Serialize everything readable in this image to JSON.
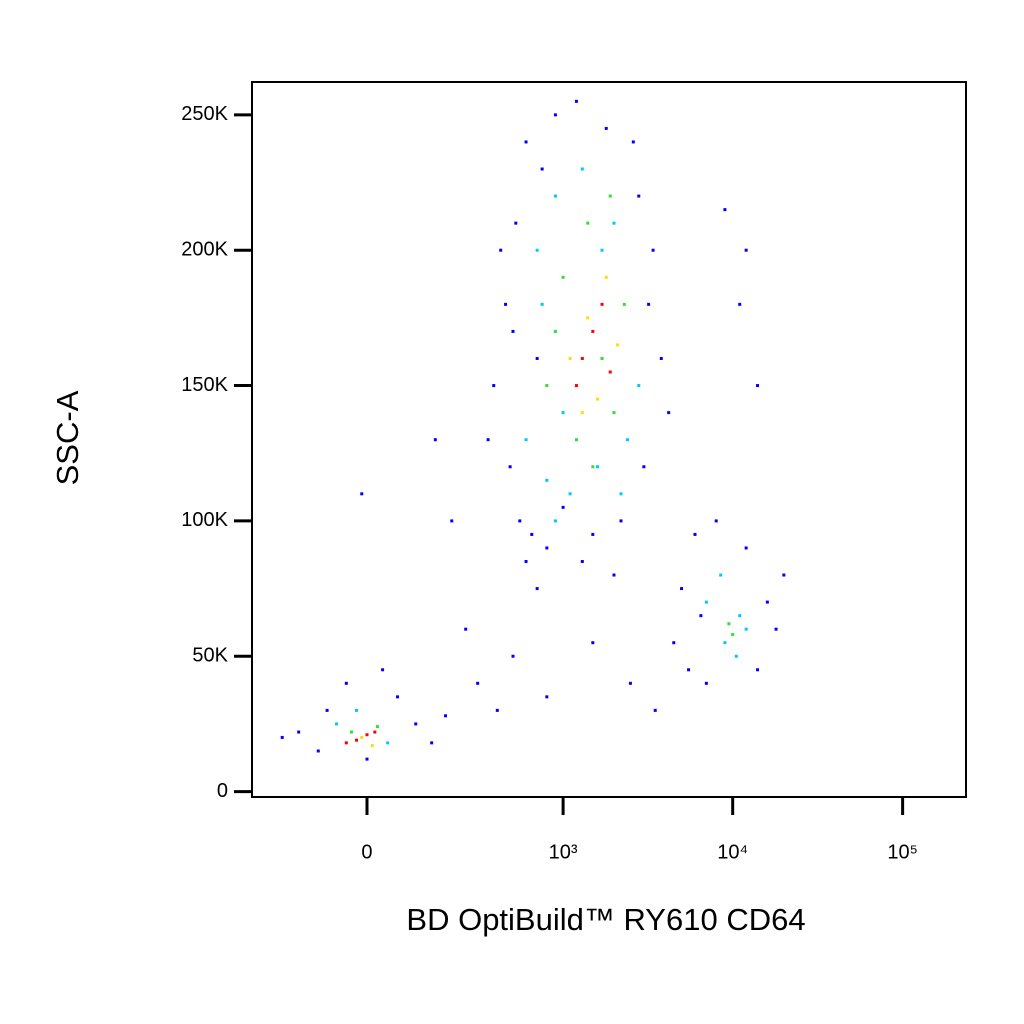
{
  "chart_data": {
    "type": "scatter",
    "x_label": "BD OptiBuild™ RY610 CD64",
    "y_label": "SSC-A",
    "xscale": "biexponential",
    "xlim": [
      -320,
      236000
    ],
    "ylim": [
      -2000,
      262144
    ],
    "xticks": [
      0,
      {
        "value": 1000,
        "label": "10³"
      },
      {
        "value": 10000,
        "label": "10⁴"
      },
      {
        "value": 100000,
        "label": "10⁵"
      }
    ],
    "yticks": [
      0,
      {
        "value": 50000,
        "label": "50K"
      },
      {
        "value": 100000,
        "label": "100K"
      },
      {
        "value": 150000,
        "label": "150K"
      },
      {
        "value": 200000,
        "label": "200K"
      },
      {
        "value": 250000,
        "label": "250K"
      }
    ],
    "series": [
      {
        "color": "#0000ff",
        "x": [
          450,
          480,
          520,
          550,
          600,
          650,
          700,
          750,
          800,
          900,
          1000,
          1200,
          1500,
          1800,
          2200,
          2600,
          3000,
          3400,
          3800,
          4200,
          380,
          420,
          350,
          500,
          2800,
          3200,
          600,
          1300,
          700,
          2000,
          -150,
          -100,
          -80,
          0,
          60,
          100,
          140,
          -40,
          30,
          180,
          -200,
          250,
          300,
          400,
          500,
          800,
          1500,
          2500,
          3500,
          200,
          150,
          -10,
          5000,
          5500,
          6000,
          7000,
          8000,
          12000,
          14000,
          16000,
          18000,
          20000,
          4500,
          6500,
          9000,
          12000,
          14000,
          11000
        ],
        "y": [
          180000,
          120000,
          210000,
          100000,
          240000,
          95000,
          160000,
          230000,
          90000,
          250000,
          105000,
          255000,
          95000,
          245000,
          100000,
          240000,
          120000,
          200000,
          160000,
          140000,
          150000,
          200000,
          130000,
          170000,
          220000,
          180000,
          85000,
          85000,
          75000,
          80000,
          22000,
          15000,
          30000,
          12000,
          35000,
          25000,
          18000,
          40000,
          45000,
          28000,
          20000,
          60000,
          40000,
          30000,
          50000,
          35000,
          55000,
          40000,
          30000,
          100000,
          130000,
          110000,
          75000,
          45000,
          95000,
          40000,
          100000,
          90000,
          45000,
          70000,
          60000,
          80000,
          55000,
          65000,
          215000,
          200000,
          150000,
          180000
        ]
      },
      {
        "color": "#00c8ff",
        "x": [
          600,
          700,
          800,
          900,
          1000,
          1100,
          1300,
          1600,
          2000,
          2400,
          2800,
          750,
          1700,
          900,
          2200,
          -60,
          40,
          -20,
          7000,
          9000,
          11000,
          8500,
          10500,
          12000
        ],
        "y": [
          130000,
          200000,
          115000,
          220000,
          140000,
          110000,
          230000,
          120000,
          210000,
          130000,
          150000,
          180000,
          200000,
          100000,
          110000,
          25000,
          18000,
          30000,
          70000,
          55000,
          65000,
          80000,
          50000,
          60000
        ]
      },
      {
        "color": "#33dd33",
        "x": [
          800,
          1000,
          1200,
          1400,
          1700,
          2000,
          2300,
          900,
          1500,
          1900,
          -30,
          20,
          9500,
          10000
        ],
        "y": [
          150000,
          190000,
          130000,
          210000,
          160000,
          140000,
          180000,
          170000,
          120000,
          220000,
          22000,
          24000,
          62000,
          58000
        ]
      },
      {
        "color": "#ffdd00",
        "x": [
          1100,
          1400,
          1600,
          1800,
          1300,
          2100,
          -10,
          10
        ],
        "y": [
          160000,
          175000,
          145000,
          190000,
          140000,
          165000,
          20000,
          17000
        ]
      },
      {
        "color": "#ff0000",
        "x": [
          1300,
          1500,
          1700,
          1200,
          1900,
          -20,
          0,
          -40,
          15
        ],
        "y": [
          160000,
          170000,
          180000,
          150000,
          155000,
          19000,
          21000,
          18000,
          22000
        ]
      }
    ]
  }
}
